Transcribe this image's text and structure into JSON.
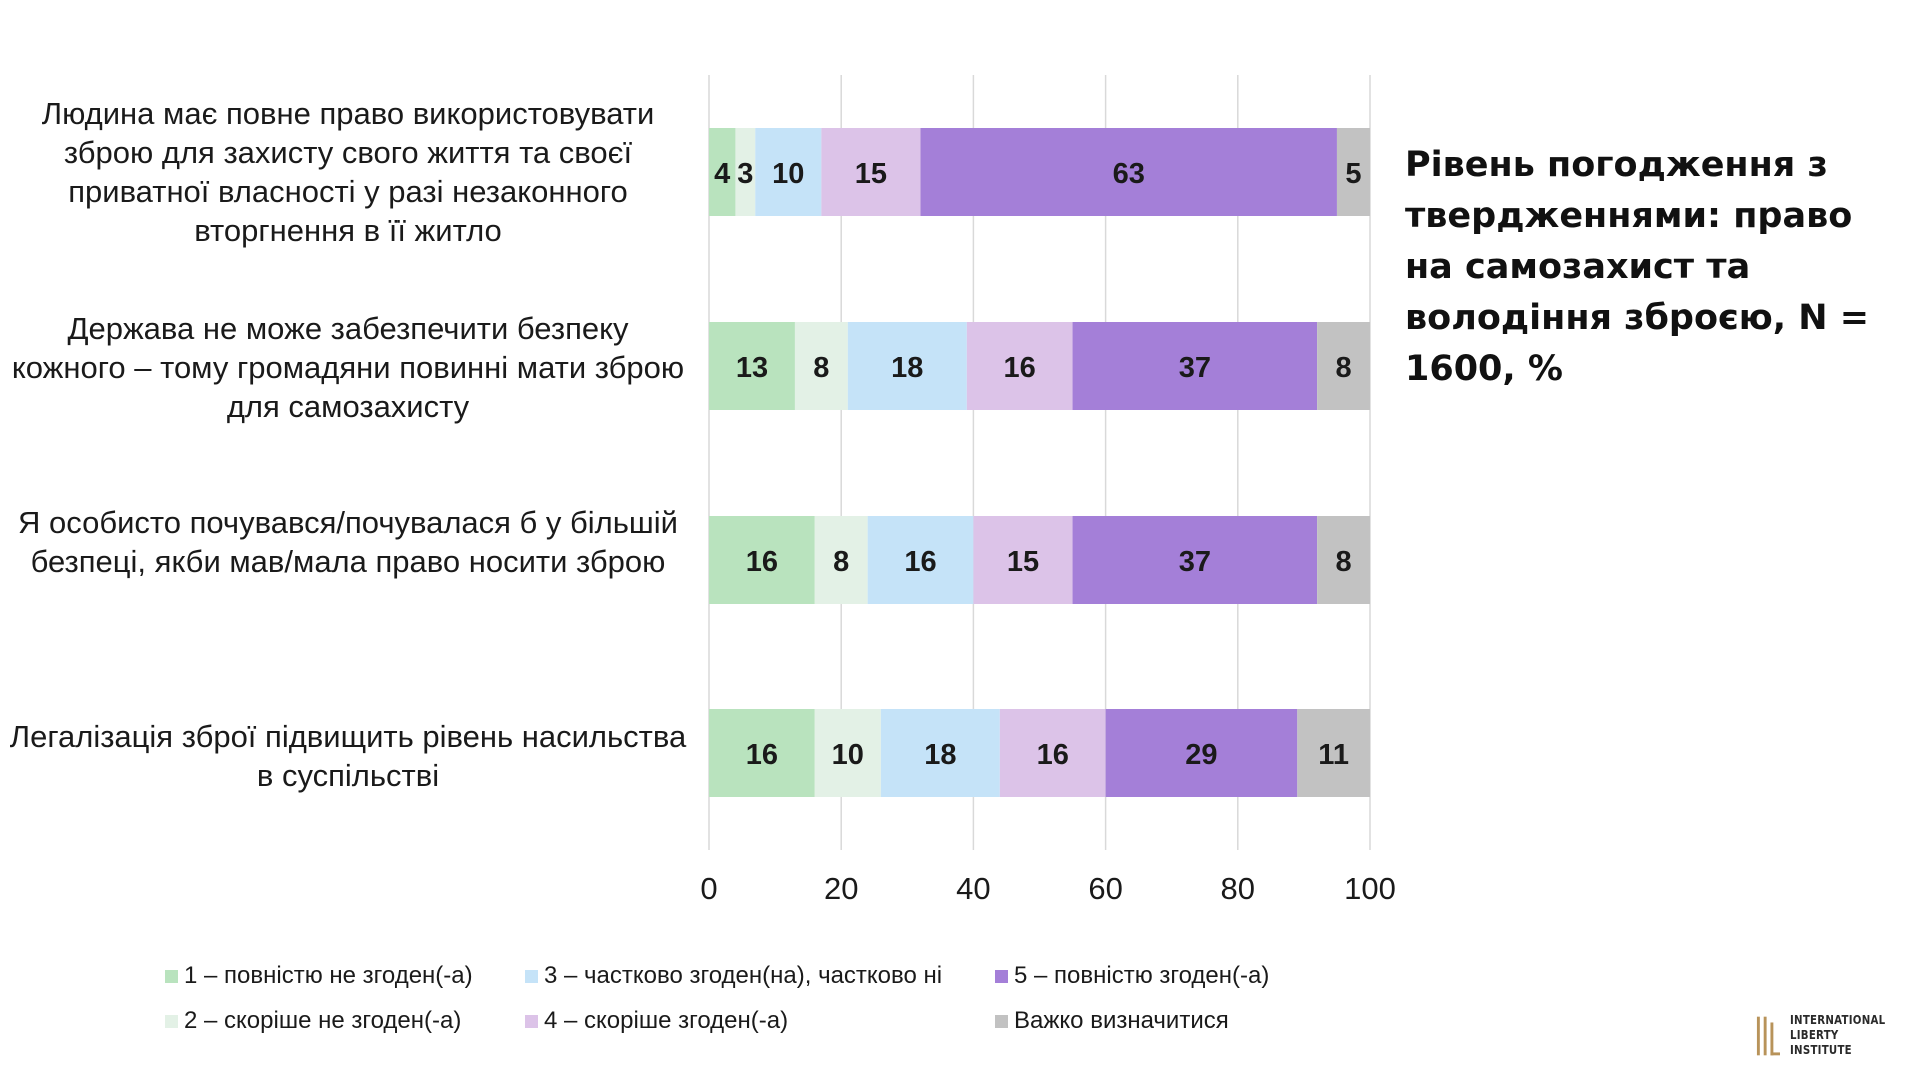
{
  "title": "Рівень погодження з твердженнями: право на самозахист та володіння зброєю, N = 1600, %",
  "logo": {
    "line1": "INTERNATIONAL",
    "line2": "LIBERTY INSTITUTE"
  },
  "chart_data": {
    "type": "bar",
    "orientation": "horizontal",
    "stacked": true,
    "categories": [
      "Людина має повне право використовувати зброю для захисту свого життя та своєї приватної власності у разі незаконного вторгнення в її житло",
      "Держава не може забезпечити безпеку кожного – тому громадяни повинні мати зброю для самозахисту",
      "Я особисто почувався/почувалася б у більшій безпеці, якби мав/мала право носити зброю",
      "Легалізація зброї підвищить рівень насильства в суспільстві"
    ],
    "series": [
      {
        "name": "1 – повністю не згоден(-а)",
        "color": "#b9e3be",
        "values": [
          4,
          13,
          16,
          16
        ]
      },
      {
        "name": "2 – скоріше не згоден(-а)",
        "color": "#e3f1e6",
        "values": [
          3,
          8,
          8,
          10
        ]
      },
      {
        "name": "3 – частково згоден(на), частково ні",
        "color": "#c5e3f8",
        "values": [
          10,
          18,
          16,
          18
        ]
      },
      {
        "name": "4 – скоріше згоден(-а)",
        "color": "#dcc3e8",
        "values": [
          15,
          16,
          15,
          16
        ]
      },
      {
        "name": "5 – повністю згоден(-а)",
        "color": "#a47fd8",
        "values": [
          63,
          37,
          37,
          29
        ]
      },
      {
        "name": "Важко визначитися",
        "color": "#c2c2c2",
        "values": [
          5,
          8,
          8,
          11
        ]
      }
    ],
    "xlim": [
      0,
      100
    ],
    "xticks": [
      0,
      20,
      40,
      60,
      80,
      100
    ],
    "grid": true,
    "legend_position": "bottom"
  }
}
